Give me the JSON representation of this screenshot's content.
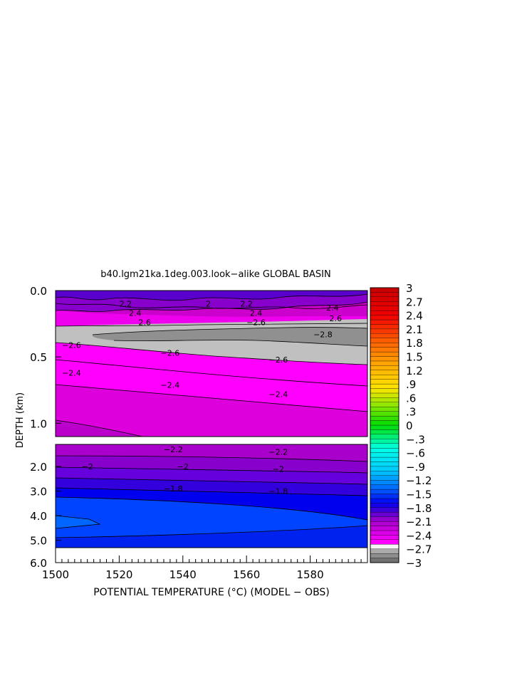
{
  "chart_data": {
    "type": "heatmap",
    "title": "b40.lgm21ka.1deg.003.look−alike GLOBAL BASIN",
    "xlabel": "POTENTIAL TEMPERATURE (°C) (MODEL − OBS)",
    "ylabel": "DEPTH (km)",
    "xlim": [
      1500,
      1598
    ],
    "x_ticks": [
      "1500",
      "1520",
      "1540",
      "1560",
      "1580"
    ],
    "x_tick_values": [
      1500,
      1520,
      1540,
      1560,
      1580
    ],
    "upper_panel": {
      "ylim": [
        0.0,
        1.1
      ],
      "y_ticks": [
        "0.0",
        "0.5",
        "1.0"
      ],
      "y_tick_values": [
        0.0,
        0.5,
        1.0
      ]
    },
    "lower_panel": {
      "ylim": [
        1.1,
        5.3
      ],
      "y_ticks": [
        "2.0",
        "3.0",
        "4.0",
        "5.0"
      ],
      "y_tick_values": [
        2.0,
        3.0,
        4.0,
        5.0
      ]
    },
    "bottom_axis_label": "6.0",
    "colorbar": {
      "range": [
        -3,
        3
      ],
      "step": 0.1,
      "tick_labels": [
        "3",
        "2.7",
        "2.4",
        "2.1",
        "1.8",
        "1.5",
        "1.2",
        ".9",
        ".6",
        ".3",
        "0",
        "−.3",
        "−.6",
        "−.9",
        "−1.2",
        "−1.5",
        "−1.8",
        "−2.1",
        "−2.4",
        "−2.7",
        "−3"
      ]
    },
    "contours": {
      "levels": [
        -2.8,
        -2.6,
        -2.4,
        -2.2,
        -2.0,
        -1.8
      ],
      "labels": [
        {
          "text": "2.2",
          "x": 1522,
          "depth": 0.1
        },
        {
          "text": "2.4",
          "x": 1525,
          "depth": 0.17
        },
        {
          "text": "2.6",
          "x": 1528,
          "depth": 0.24
        },
        {
          "text": "2",
          "x": 1548,
          "depth": 0.1
        },
        {
          "text": "2.2",
          "x": 1560,
          "depth": 0.1
        },
        {
          "text": "2.4",
          "x": 1563,
          "depth": 0.17
        },
        {
          "text": "−2.6",
          "x": 1563,
          "depth": 0.24
        },
        {
          "text": "2.4",
          "x": 1587,
          "depth": 0.13
        },
        {
          "text": "2.6",
          "x": 1588,
          "depth": 0.21
        },
        {
          "text": "−2.8",
          "x": 1584,
          "depth": 0.33
        },
        {
          "text": "−2.6",
          "x": 1505,
          "depth": 0.41
        },
        {
          "text": "−2.6",
          "x": 1536,
          "depth": 0.47
        },
        {
          "text": "−2.6",
          "x": 1570,
          "depth": 0.52
        },
        {
          "text": "−2.4",
          "x": 1505,
          "depth": 0.62
        },
        {
          "text": "−2.4",
          "x": 1536,
          "depth": 0.71
        },
        {
          "text": "−2.4",
          "x": 1570,
          "depth": 0.78
        },
        {
          "text": "−2.2",
          "x": 1537,
          "depth": 1.3
        },
        {
          "text": "−2.2",
          "x": 1570,
          "depth": 1.4
        },
        {
          "text": "−2",
          "x": 1510,
          "depth": 2.0
        },
        {
          "text": "−2",
          "x": 1540,
          "depth": 2.0
        },
        {
          "text": "−2",
          "x": 1570,
          "depth": 2.1
        },
        {
          "text": "−1.8",
          "x": 1537,
          "depth": 2.9
        },
        {
          "text": "−1.8",
          "x": 1570,
          "depth": 3.0
        }
      ]
    }
  }
}
